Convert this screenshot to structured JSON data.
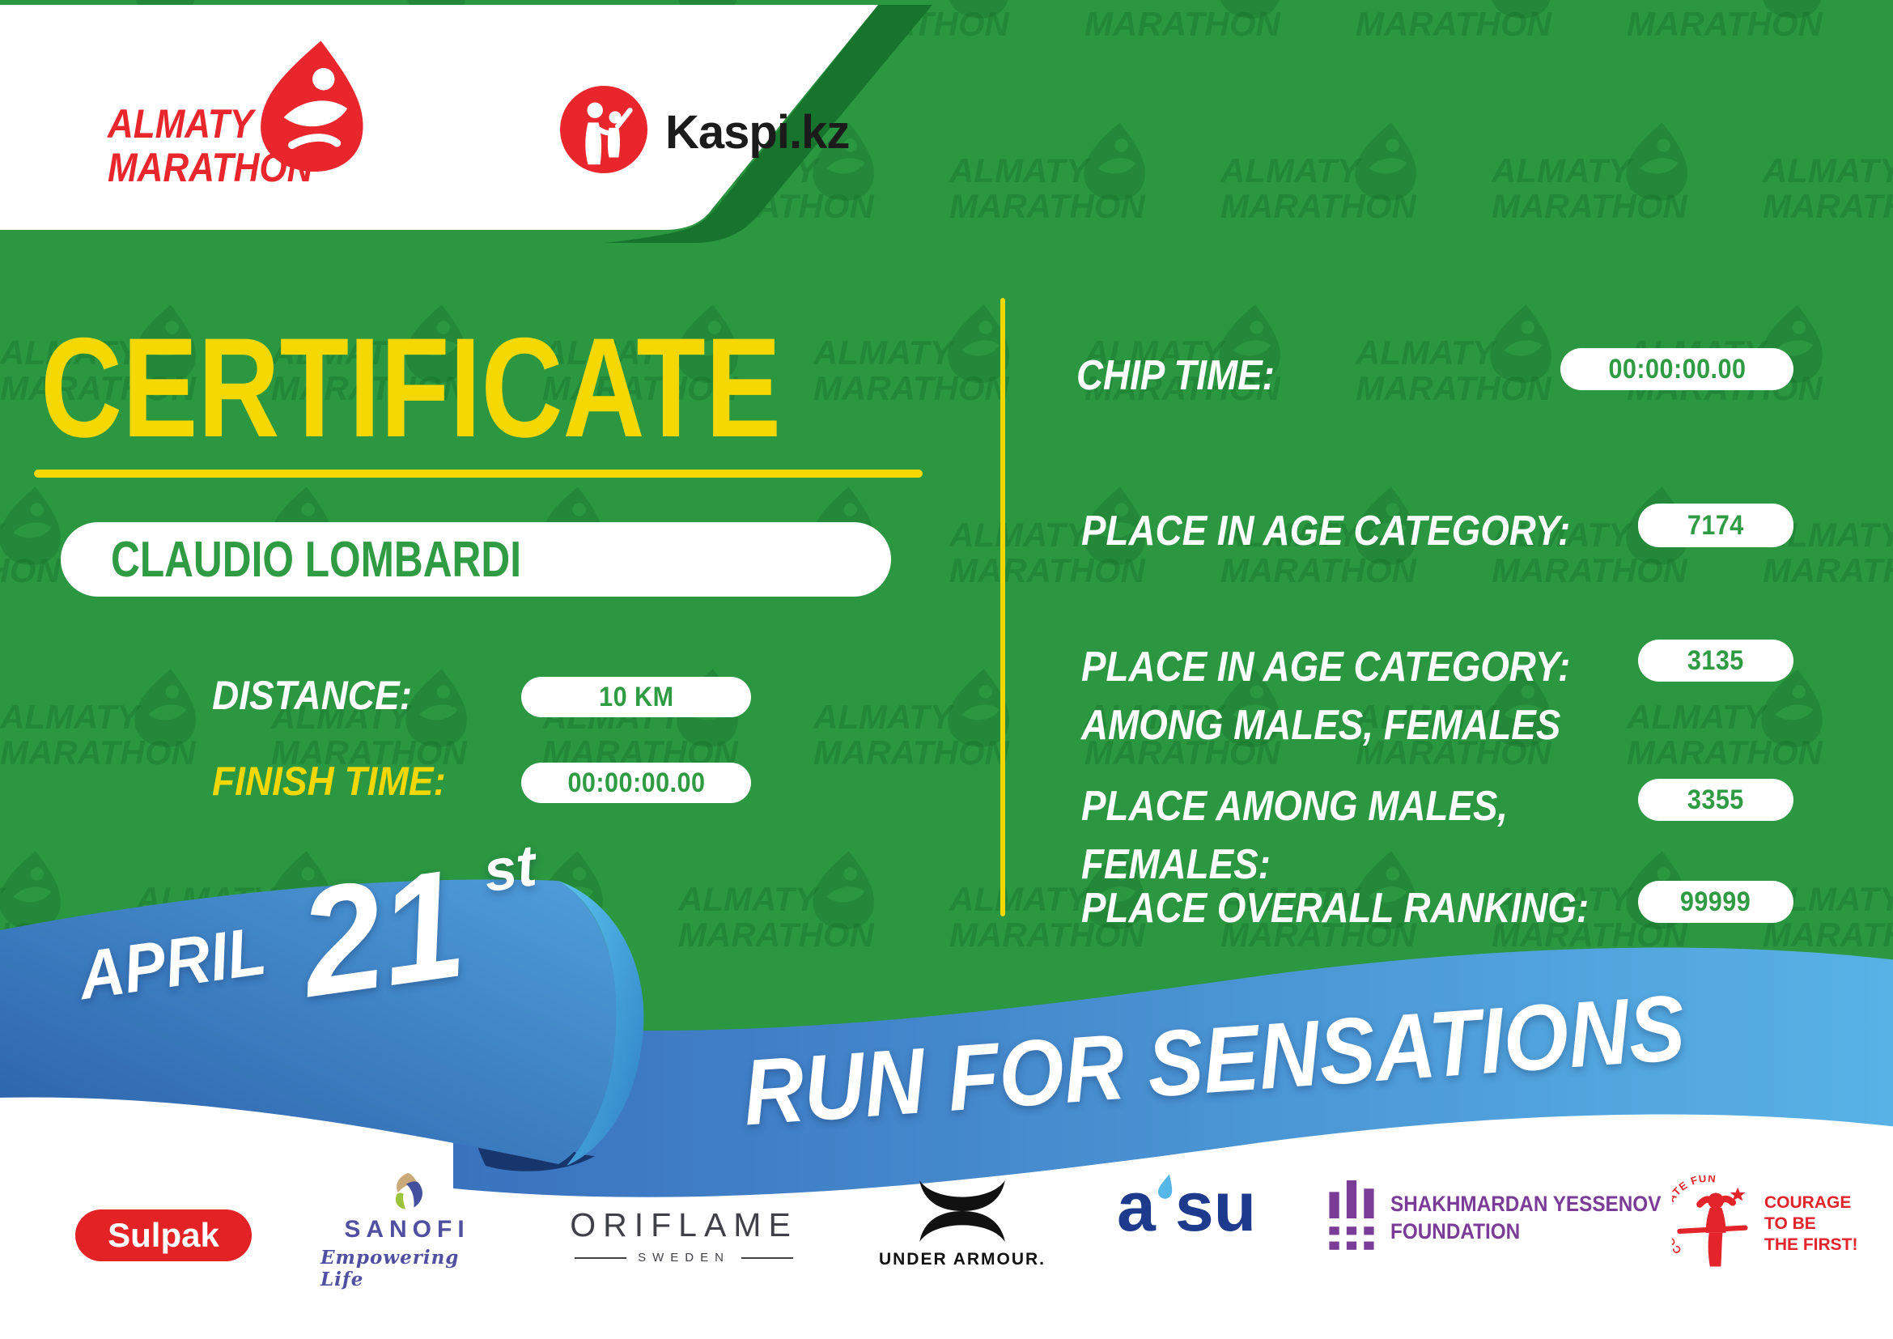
{
  "header": {
    "almaty_logo": {
      "line1": "ALMATY",
      "line2": "MARATHON"
    },
    "kaspi_logo": {
      "wordmark": "Kaspi.kz"
    }
  },
  "watermark": {
    "line1": "ALMATY",
    "line2": "MARATHON"
  },
  "certificate": {
    "title": "CERTIFICATE",
    "runner_name": "CLAUDIO LOMBARDI",
    "fields": {
      "distance": {
        "label": "DISTANCE:",
        "value": "10 KM"
      },
      "finish_time": {
        "label": "FINISH TIME:",
        "value": "00:00:00.00"
      }
    },
    "results": [
      {
        "label_lines": [
          "CHIP TIME:"
        ],
        "value": "00:00:00.00"
      },
      {
        "label_lines": [
          "PLACE IN AGE CATEGORY:"
        ],
        "value": "7174"
      },
      {
        "label_lines": [
          "PLACE IN AGE CATEGORY:",
          "AMONG MALES, FEMALES"
        ],
        "value": "3135"
      },
      {
        "label_lines": [
          "PLACE AMONG MALES,",
          "FEMALES:"
        ],
        "value": "3355"
      },
      {
        "label_lines": [
          "PLACE OVERALL RANKING:"
        ],
        "value": "99999"
      }
    ]
  },
  "ribbon": {
    "date_month": "APRIL",
    "date_day": "21",
    "date_suffix": "st",
    "slogan": "RUN FOR SENSATIONS"
  },
  "sponsors": {
    "sulpak": {
      "name": "Sulpak"
    },
    "sanofi": {
      "name": "SANOFI",
      "tagline": "Empowering Life"
    },
    "oriflame": {
      "name": "ORIFLAME",
      "subtitle": "SWEDEN"
    },
    "under_armour": {
      "name": "UNDER ARMOUR."
    },
    "asu": {
      "part1": "a",
      "part2": "su"
    },
    "yessenov": {
      "line1": "SHAKHMARDAN YESSENOV",
      "line2": "FOUNDATION"
    },
    "courage_fund": {
      "arc_text": "CORPORATE FUND",
      "lines": [
        "COURAGE",
        "TO BE",
        "THE FIRST!"
      ]
    }
  },
  "colors": {
    "green": "#2B9741",
    "green_watermark": "#0E6423",
    "green_edge_dark": "#17742C",
    "yellow": "#F2D800",
    "title_yellow": "#F5D802",
    "pill_text_green": "#2F9B43",
    "brand_red": "#E8262C",
    "ribbon_blue_dark": "#2B5FA9",
    "ribbon_blue_light": "#58B2E6",
    "ribbon_curl_navy": "#17366E",
    "sanofi_purple": "#514FA1",
    "yessenov_purple": "#7B3C98",
    "asu_navy": "#1D3A8C",
    "asu_droplet": "#56B7E6"
  }
}
